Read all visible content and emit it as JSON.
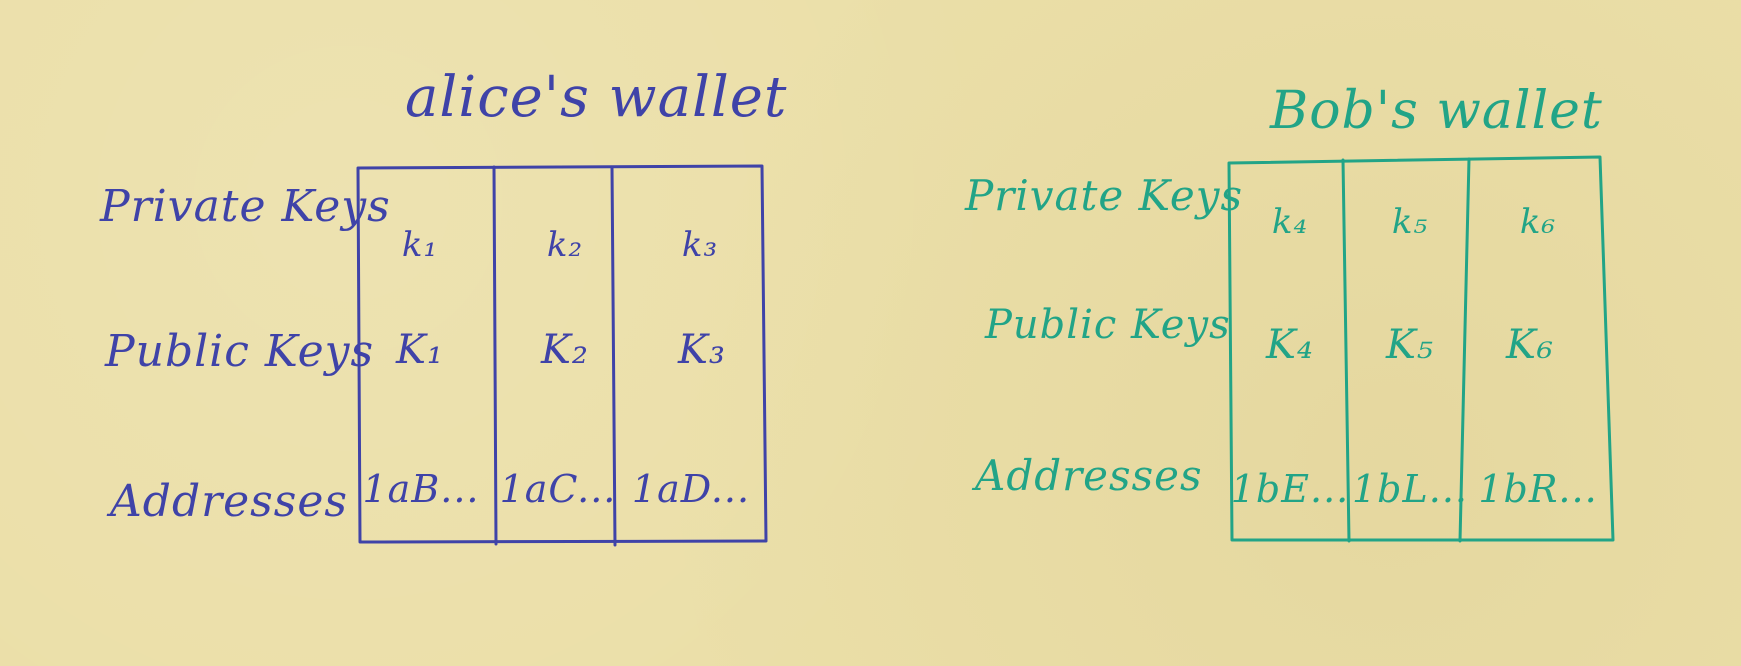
{
  "alice_wallet": {
    "title": "alice's wallet",
    "color": "#3f43a8",
    "row_labels": [
      "Private Keys",
      "Public Keys",
      "Addresses"
    ],
    "columns": [
      {
        "private": "k₁",
        "public": "K₁",
        "address": "1aB..."
      },
      {
        "private": "k₂",
        "public": "K₂",
        "address": "1aC..."
      },
      {
        "private": "k₃",
        "public": "K₃",
        "address": "1aD..."
      }
    ]
  },
  "bob_wallet": {
    "title": "Bob's wallet",
    "color": "#22a487",
    "row_labels": [
      "Private Keys",
      "Public Keys",
      "Addresses"
    ],
    "columns": [
      {
        "private": "k₄",
        "public": "K₄",
        "address": "1bE..."
      },
      {
        "private": "k₅",
        "public": "K₅",
        "address": "1bL..."
      },
      {
        "private": "k₆",
        "public": "K₆",
        "address": "1bR..."
      }
    ]
  }
}
